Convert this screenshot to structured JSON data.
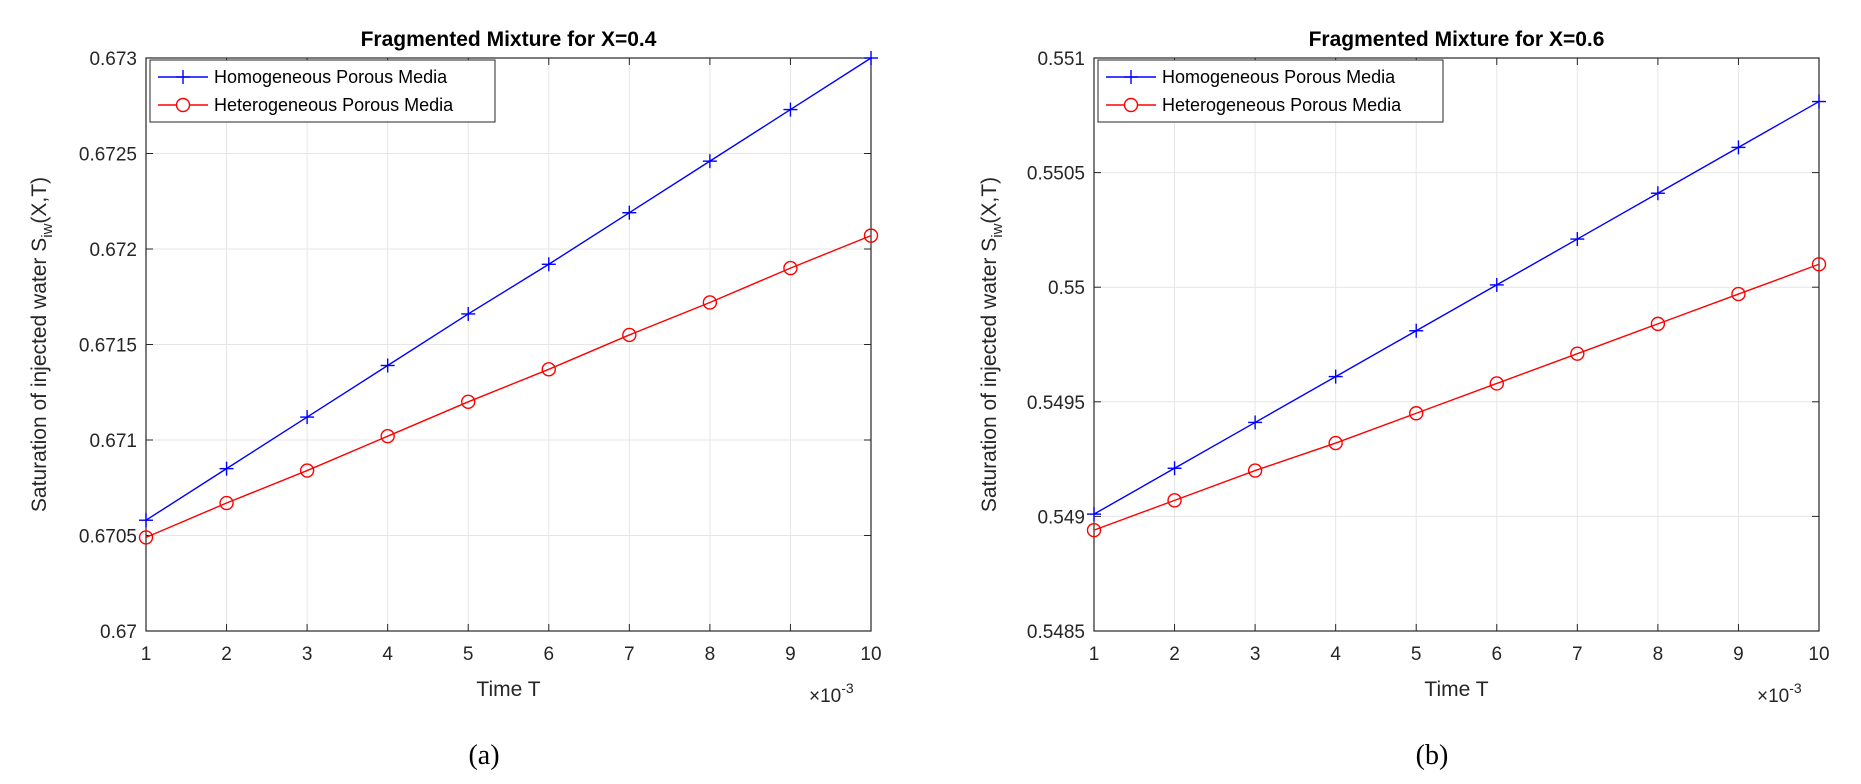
{
  "chart_data": [
    {
      "type": "line",
      "title": "Fragmented Mixture for X=0.4",
      "xlabel": "Time T",
      "ylabel": "Saturation of injected water S",
      "ylabel_sub": "iw",
      "ylabel_tail": "(X,T)",
      "x_multiplier_base": "×10",
      "x_multiplier_exp": "-3",
      "caption": "(a)",
      "xlim": [
        1,
        10
      ],
      "ylim": [
        0.67,
        0.673
      ],
      "xticks": [
        "1",
        "2",
        "3",
        "4",
        "5",
        "6",
        "7",
        "8",
        "9",
        "10"
      ],
      "yticks": [
        "0.67",
        "0.6705",
        "0.671",
        "0.6715",
        "0.672",
        "0.6725",
        "0.673"
      ],
      "grid": true,
      "legend_position": "top-left",
      "x": [
        1,
        2,
        3,
        4,
        5,
        6,
        7,
        8,
        9,
        10
      ],
      "series": [
        {
          "name": "Homogeneous Porous Media",
          "color": "#0000ff",
          "marker": "plus",
          "values": [
            0.67058,
            0.67085,
            0.67112,
            0.67139,
            0.67166,
            0.67192,
            0.67219,
            0.67246,
            0.67273,
            0.673
          ]
        },
        {
          "name": "Heterogeneous Porous Media",
          "color": "#ff0000",
          "marker": "circle",
          "values": [
            0.67049,
            0.67067,
            0.67084,
            0.67102,
            0.6712,
            0.67137,
            0.67155,
            0.67172,
            0.6719,
            0.67207
          ]
        }
      ]
    },
    {
      "type": "line",
      "title": "Fragmented Mixture for X=0.6",
      "xlabel": "Time T",
      "ylabel": "Saturation of injected water S",
      "ylabel_sub": "iw",
      "ylabel_tail": "(X,T)",
      "x_multiplier_base": "×10",
      "x_multiplier_exp": "-3",
      "caption": "(b)",
      "xlim": [
        1,
        10
      ],
      "ylim": [
        0.5485,
        0.551
      ],
      "xticks": [
        "1",
        "2",
        "3",
        "4",
        "5",
        "6",
        "7",
        "8",
        "9",
        "10"
      ],
      "yticks": [
        "0.5485",
        "0.549",
        "0.5495",
        "0.55",
        "0.5505",
        "0.551"
      ],
      "grid": true,
      "legend_position": "top-left",
      "x": [
        1,
        2,
        3,
        4,
        5,
        6,
        7,
        8,
        9,
        10
      ],
      "series": [
        {
          "name": "Homogeneous Porous Media",
          "color": "#0000ff",
          "marker": "plus",
          "values": [
            0.54901,
            0.54921,
            0.54941,
            0.54961,
            0.54981,
            0.55001,
            0.55021,
            0.55041,
            0.55061,
            0.55081
          ]
        },
        {
          "name": "Heterogeneous Porous Media",
          "color": "#ff0000",
          "marker": "circle",
          "values": [
            0.54894,
            0.54907,
            0.5492,
            0.54932,
            0.54945,
            0.54958,
            0.54971,
            0.54984,
            0.54997,
            0.5501
          ]
        }
      ]
    }
  ]
}
